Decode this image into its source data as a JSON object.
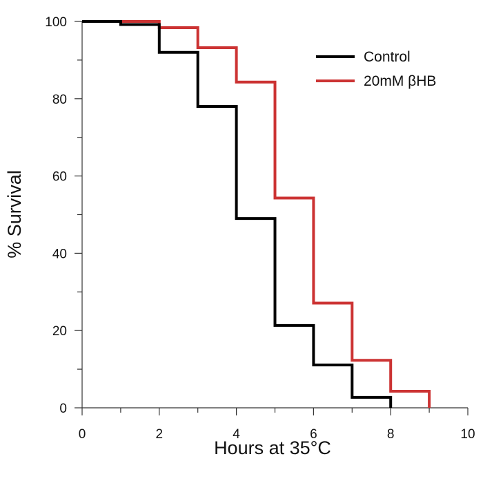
{
  "chart_data": {
    "type": "line",
    "step": true,
    "title": "",
    "xlabel": "Hours at 35°C",
    "ylabel": "% Survival",
    "xlim": [
      0,
      10
    ],
    "ylim": [
      0,
      100
    ],
    "x_ticks": [
      0,
      2,
      4,
      6,
      8,
      10
    ],
    "x_minor_ticks": [
      1,
      3,
      5,
      7,
      9
    ],
    "y_ticks": [
      0,
      20,
      40,
      60,
      80,
      100
    ],
    "y_minor_ticks": [
      10,
      30,
      50,
      70,
      90
    ],
    "x_tick_labels": [
      "0",
      "2",
      "4",
      "6",
      "8",
      "10"
    ],
    "y_tick_labels": [
      "0",
      "20",
      "40",
      "60",
      "80",
      "100"
    ],
    "legend_position": "top-right",
    "series": [
      {
        "name": "Control",
        "color": "#000000",
        "x": [
          0,
          1,
          2,
          3,
          4,
          5,
          6,
          7,
          8
        ],
        "y": [
          100,
          99.2,
          92,
          78,
          49,
          21.3,
          11.1,
          2.7,
          0
        ]
      },
      {
        "name": "20mM βHB",
        "color": "#cc3333",
        "x": [
          0,
          2,
          3,
          4,
          5,
          6,
          7,
          8,
          9
        ],
        "y": [
          100,
          98.4,
          93.2,
          84.3,
          54.3,
          27.1,
          12.3,
          4.3,
          0
        ]
      }
    ]
  }
}
